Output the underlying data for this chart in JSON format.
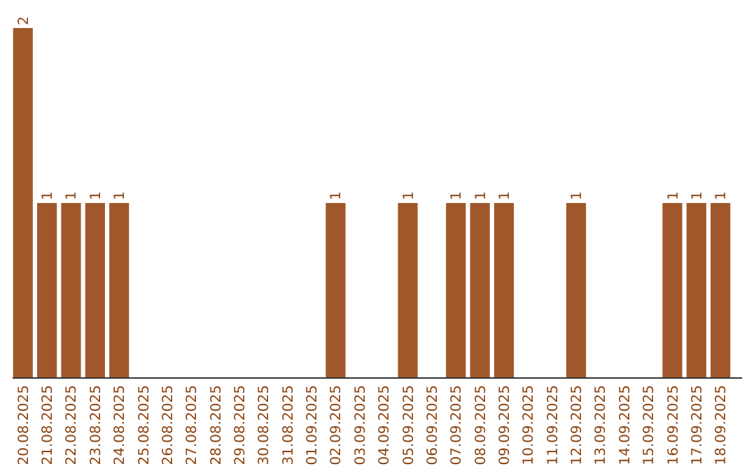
{
  "chart_data": {
    "type": "bar",
    "categories": [
      "20.08.2025",
      "21.08.2025",
      "22.08.2025",
      "23.08.2025",
      "24.08.2025",
      "25.08.2025",
      "26.08.2025",
      "27.08.2025",
      "28.08.2025",
      "29.08.2025",
      "30.08.2025",
      "31.08.2025",
      "01.09.2025",
      "02.09.2025",
      "03.09.2025",
      "04.09.2025",
      "05.09.2025",
      "06.09.2025",
      "07.09.2025",
      "08.09.2025",
      "09.09.2025",
      "10.09.2025",
      "11.09.2025",
      "12.09.2025",
      "13.09.2025",
      "14.09.2025",
      "15.09.2025",
      "16.09.2025",
      "17.09.2025",
      "18.09.2025"
    ],
    "values": [
      2,
      1,
      1,
      1,
      1,
      0,
      0,
      0,
      0,
      0,
      0,
      0,
      0,
      1,
      0,
      0,
      1,
      0,
      1,
      1,
      1,
      0,
      0,
      1,
      0,
      0,
      0,
      1,
      1,
      1
    ],
    "value_labels": [
      "2",
      "1",
      "1",
      "1",
      "1",
      null,
      null,
      null,
      null,
      null,
      null,
      null,
      null,
      "1",
      null,
      null,
      "1",
      null,
      "1",
      "1",
      "1",
      null,
      null,
      "1",
      null,
      null,
      null,
      "1",
      "1",
      "1"
    ],
    "color": "#a0582a",
    "ylim": [
      0,
      2
    ],
    "tick_labels": "x"
  }
}
